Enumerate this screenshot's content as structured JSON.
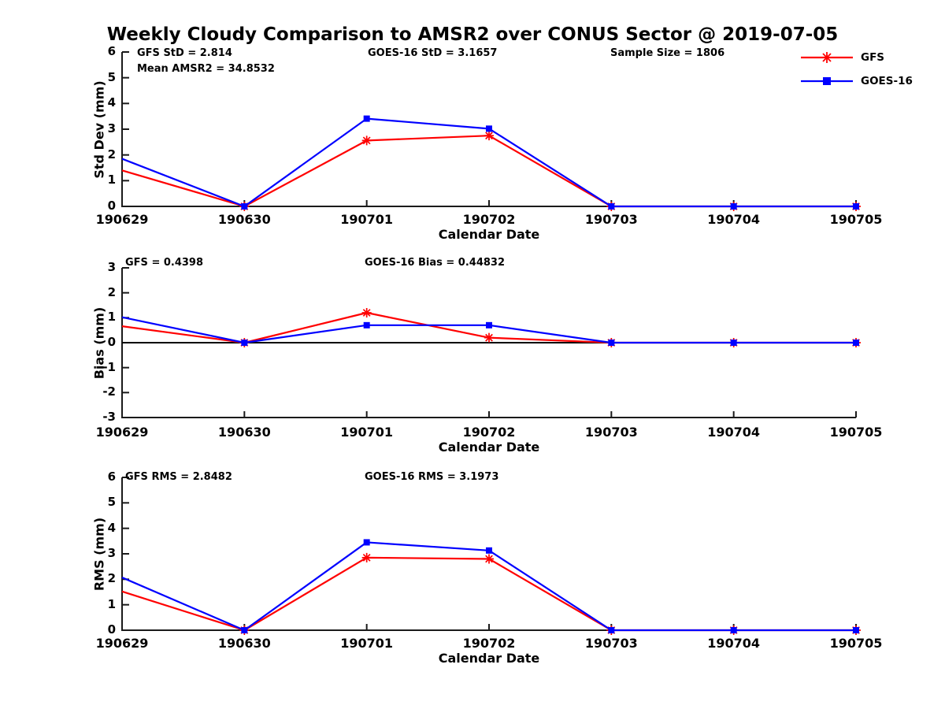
{
  "title": "Weekly Cloudy Comparison to AMSR2 over CONUS Sector @ 2019-07-05",
  "colors": {
    "gfs": "#ff0000",
    "goes16": "#0000ff",
    "axis": "#1a1a1a",
    "zero_line": "#000000",
    "text": "#000000"
  },
  "legend": {
    "entries": [
      {
        "label": "GFS",
        "color": "#ff0000",
        "marker": "asterisk"
      },
      {
        "label": "GOES-16",
        "color": "#0000ff",
        "marker": "square"
      }
    ]
  },
  "chart_data": [
    {
      "type": "line",
      "panel": "std-dev",
      "title": "",
      "categories": [
        "190629",
        "190630",
        "190701",
        "190702",
        "190703",
        "190704",
        "190705"
      ],
      "series": [
        {
          "name": "GFS",
          "color": "#ff0000",
          "marker": "asterisk",
          "values": [
            1.4,
            0,
            2.56,
            2.75,
            0,
            0,
            0
          ]
        },
        {
          "name": "GOES-16",
          "color": "#0000ff",
          "marker": "square",
          "values": [
            1.85,
            0,
            3.41,
            3.02,
            0,
            0,
            0
          ]
        }
      ],
      "xlabel": "Calendar Date",
      "ylabel": "Std Dev (mm)",
      "ylim": [
        0,
        6
      ],
      "yticks": [
        0,
        1,
        2,
        3,
        4,
        5,
        6
      ],
      "grid": false,
      "legend_position": "top-right-outside",
      "annotations": [
        "GFS StD = 2.814",
        "Mean AMSR2 = 34.8532",
        "GOES-16 StD = 3.1657",
        "Sample Size = 1806"
      ]
    },
    {
      "type": "line",
      "panel": "bias",
      "title": "",
      "categories": [
        "190629",
        "190630",
        "190701",
        "190702",
        "190703",
        "190704",
        "190705"
      ],
      "series": [
        {
          "name": "GFS",
          "color": "#ff0000",
          "marker": "asterisk",
          "values": [
            0.66,
            0,
            1.2,
            0.2,
            0,
            0,
            0
          ]
        },
        {
          "name": "GOES-16",
          "color": "#0000ff",
          "marker": "square",
          "values": [
            1.02,
            0,
            0.7,
            0.7,
            0,
            0,
            0
          ]
        }
      ],
      "xlabel": "Calendar Date",
      "ylabel": "Bias (mm)",
      "ylim": [
        -3,
        3
      ],
      "yticks": [
        -3,
        -2,
        -1,
        0,
        1,
        2,
        3
      ],
      "grid": false,
      "zero_line": true,
      "annotations": [
        "GFS = 0.4398",
        "GOES-16 Bias  = 0.44832"
      ]
    },
    {
      "type": "line",
      "panel": "rms",
      "title": "",
      "categories": [
        "190629",
        "190630",
        "190701",
        "190702",
        "190703",
        "190704",
        "190705"
      ],
      "series": [
        {
          "name": "GFS",
          "color": "#ff0000",
          "marker": "asterisk",
          "values": [
            1.52,
            0,
            2.85,
            2.8,
            0,
            0,
            0
          ]
        },
        {
          "name": "GOES-16",
          "color": "#0000ff",
          "marker": "square",
          "values": [
            2.07,
            0,
            3.45,
            3.13,
            0,
            0,
            0
          ]
        }
      ],
      "xlabel": "Calendar Date",
      "ylabel": "RMS (mm)",
      "ylim": [
        0,
        6
      ],
      "yticks": [
        0,
        1,
        2,
        3,
        4,
        5,
        6
      ],
      "grid": false,
      "annotations": [
        "GFS RMS = 2.8482",
        "GOES-16 RMS = 3.1973"
      ]
    }
  ]
}
